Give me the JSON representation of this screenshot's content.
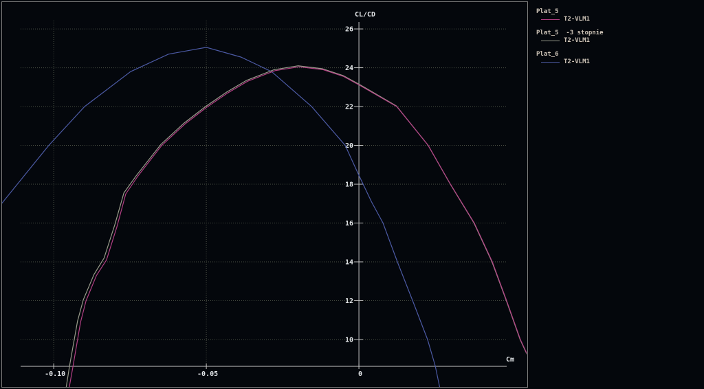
{
  "chart_data": {
    "type": "line",
    "title": "",
    "xlabel": "Cm",
    "ylabel": "CL/CD",
    "grid": true,
    "legend_position": "right",
    "x_range": [
      -0.1176,
      0.0554
    ],
    "y_range": [
      7.45,
      27.49
    ],
    "x_ticks": {
      "values": [
        -0.1,
        -0.05,
        0
      ],
      "labels": [
        "-0.10",
        "-0.05",
        "0"
      ]
    },
    "y_ticks": {
      "values": [
        26,
        24,
        22,
        20,
        18,
        16,
        14,
        12,
        10
      ],
      "labels": [
        "26",
        "24",
        "22",
        "20",
        "18",
        "16",
        "14",
        "12",
        "10"
      ]
    },
    "series": [
      {
        "name": "Plat_5",
        "sub": "T2-VLM1",
        "color": "#b23f84",
        "points": [
          [
            -0.095,
            7.45
          ],
          [
            -0.0937,
            8.6
          ],
          [
            -0.0912,
            10.9
          ],
          [
            -0.0894,
            12.0
          ],
          [
            -0.086,
            13.3
          ],
          [
            -0.0827,
            14.1
          ],
          [
            -0.0793,
            15.8
          ],
          [
            -0.0764,
            17.5
          ],
          [
            -0.0725,
            18.4
          ],
          [
            -0.0646,
            20.0
          ],
          [
            -0.057,
            21.1
          ],
          [
            -0.05,
            21.95
          ],
          [
            -0.043,
            22.7
          ],
          [
            -0.0365,
            23.3
          ],
          [
            -0.0275,
            23.85
          ],
          [
            -0.0196,
            24.05
          ],
          [
            -0.0117,
            23.9
          ],
          [
            -0.005,
            23.55
          ],
          [
            0.0002,
            23.1
          ],
          [
            0.0124,
            22.0
          ],
          [
            0.0227,
            20.0
          ],
          [
            0.03,
            18.0
          ],
          [
            0.0378,
            16.0
          ],
          [
            0.0437,
            14.0
          ],
          [
            0.0484,
            12.0
          ],
          [
            0.0529,
            10.0
          ],
          [
            0.0554,
            9.15
          ]
        ]
      },
      {
        "name": "Plat_5  -3 stopnie",
        "sub": "T2-VLM1",
        "color": "#999c8b",
        "points": [
          [
            -0.096,
            7.45
          ],
          [
            -0.0948,
            8.65
          ],
          [
            -0.0922,
            10.95
          ],
          [
            -0.0903,
            12.05
          ],
          [
            -0.0868,
            13.35
          ],
          [
            -0.0835,
            14.2
          ],
          [
            -0.08,
            15.9
          ],
          [
            -0.077,
            17.55
          ],
          [
            -0.0729,
            18.45
          ],
          [
            -0.0649,
            20.05
          ],
          [
            -0.0573,
            21.15
          ],
          [
            -0.0503,
            22.0
          ],
          [
            -0.0433,
            22.75
          ],
          [
            -0.0368,
            23.35
          ],
          [
            -0.0278,
            23.9
          ],
          [
            -0.0199,
            24.1
          ],
          [
            -0.012,
            23.95
          ],
          [
            -0.0052,
            23.6
          ],
          [
            0.0001,
            23.15
          ],
          [
            0.0123,
            22.03
          ],
          [
            0.0226,
            20.02
          ],
          [
            0.0299,
            18.01
          ],
          [
            0.0377,
            16.0
          ],
          [
            0.0436,
            14.0
          ],
          [
            0.0483,
            12.0
          ],
          [
            0.0528,
            10.0
          ],
          [
            0.0553,
            9.15
          ]
        ]
      },
      {
        "name": "Plat_6",
        "sub": "T2-VLM1",
        "color": "#4c5aa4",
        "points": [
          [
            -0.1176,
            16.9
          ],
          [
            -0.1104,
            18.3
          ],
          [
            -0.1016,
            20.0
          ],
          [
            -0.0899,
            22.0
          ],
          [
            -0.0748,
            23.8
          ],
          [
            -0.0624,
            24.7
          ],
          [
            -0.05,
            25.05
          ],
          [
            -0.0387,
            24.55
          ],
          [
            -0.0286,
            23.8
          ],
          [
            -0.0155,
            22.0
          ],
          [
            -0.0045,
            20.0
          ],
          [
            0.0,
            18.45
          ],
          [
            0.0041,
            17.1
          ],
          [
            0.0079,
            16.0
          ],
          [
            0.0126,
            14.0
          ],
          [
            0.0176,
            12.0
          ],
          [
            0.0225,
            10.0
          ],
          [
            0.025,
            8.65
          ],
          [
            0.0266,
            7.45
          ]
        ]
      }
    ]
  },
  "colors": {
    "background": "#04070c",
    "frame_border": "#7f7f7f",
    "grid": "#4a5145",
    "axis": "#c6c6c6",
    "axis_text": "#e2e5e8",
    "legend_text": "#cdc3b7"
  }
}
